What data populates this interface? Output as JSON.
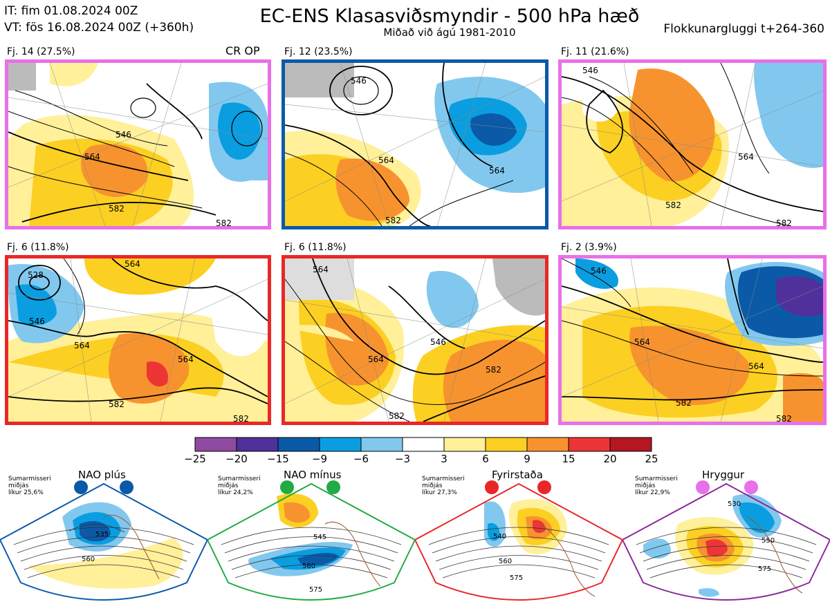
{
  "header": {
    "init_time": "IT: fim 01.08.2024 00Z",
    "valid_time": "VT: fös 16.08.2024 00Z  (+360h)",
    "title": "EC-ENS Klasasviðsmyndir - 500 hPa hæð",
    "subtitle": "Miðað við ágú 1981-2010",
    "window": "Flokkunargluggi t+264-360"
  },
  "clusters": [
    {
      "label": "Fj. 14 (27.5%)",
      "extra": "CR OP",
      "regime": "Hryggur",
      "border_color": "#e870e8",
      "contours": [
        "546",
        "564",
        "582",
        "582"
      ]
    },
    {
      "label": "Fj. 12 (23.5%)",
      "extra": "",
      "regime": "NAO plús",
      "border_color": "#0a5aa8",
      "contours": [
        "546",
        "564",
        "564",
        "582"
      ]
    },
    {
      "label": "Fj. 11 (21.6%)",
      "extra": "",
      "regime": "Hryggur",
      "border_color": "#e870e8",
      "contours": [
        "546",
        "564",
        "582",
        "582"
      ]
    },
    {
      "label": "Fj. 6 (11.8%)",
      "extra": "",
      "regime": "Fyrirstaða",
      "border_color": "#e82828",
      "contours": [
        "528",
        "546",
        "564",
        "564",
        "564",
        "582",
        "582"
      ]
    },
    {
      "label": "Fj. 6 (11.8%)",
      "extra": "",
      "regime": "Fyrirstaða",
      "border_color": "#e82828",
      "contours": [
        "564",
        "546",
        "564",
        "582",
        "582"
      ]
    },
    {
      "label": "Fj. 2 (3.9%)",
      "extra": "",
      "regime": "Hryggur",
      "border_color": "#e870e8",
      "contours": [
        "546",
        "564",
        "564",
        "582",
        "582"
      ]
    }
  ],
  "colorbar": {
    "colors": [
      "#8e4aa0",
      "#50309a",
      "#0a5aa8",
      "#0a9ee0",
      "#82c8ee",
      "#ffffff",
      "#fff099",
      "#fcd022",
      "#f7932e",
      "#ed3535",
      "#b41622"
    ],
    "ticks": [
      "−25",
      "−20",
      "−15",
      "−9",
      "−6",
      "−3",
      "3",
      "6",
      "9",
      "15",
      "20",
      "25"
    ]
  },
  "regimes": [
    {
      "name": "NAO plús",
      "note": [
        "Sumarmisseri",
        "miðjás",
        "líkur 25,6%"
      ],
      "color": "#0a5aa8",
      "contours": [
        "535",
        "560"
      ]
    },
    {
      "name": "NAO mínus",
      "note": [
        "Sumarmisseri",
        "miðjás",
        "líkur 24,2%"
      ],
      "color": "#22aa44",
      "contours": [
        "545",
        "560",
        "575"
      ]
    },
    {
      "name": "Fyrirstaða",
      "note": [
        "Sumarmisseri",
        "miðjás",
        "líkur 27,3%"
      ],
      "color": "#e82828",
      "contours": [
        "540",
        "560",
        "575"
      ]
    },
    {
      "name": "Hryggur",
      "note": [
        "Sumarmisseri",
        "miðjás",
        "líkur 22,9%"
      ],
      "color": "#e870e8",
      "border": "#8a2a9a",
      "contours": [
        "530",
        "550",
        "575"
      ]
    }
  ]
}
